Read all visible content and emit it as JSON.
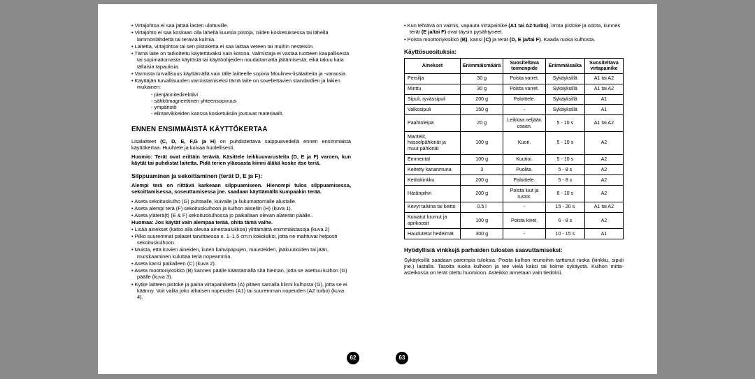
{
  "left": {
    "top_bullets": [
      "Virtajohtoa ei saa jättää lasten ulottuville.",
      "Virtajohto ei saa koskaan olla lähellä kuumia pintoja, niiden kosketuksessa tai lähellä lämmönlähdettä tai teräviä kulmia.",
      "Laitetta, virtajohtoa tai sen pistoketta ei saa laittaa veteen tai muihin nesteisiin.",
      "Tämä laite on tarkoitettu käytettäväksi vain kotona. Valmistaja ei vastaa tuotteen kaupallisesta tai sopimattomasta käytöstä tai käyttöohjeiden noudattamatta jättämisestä, eikä takuu kata tällaisia tapauksia.",
      "Varmista turvallisuus käyttämällä vain tälle laitteelle sopivia Moulinex-lisälaitteita ja -varaosia.",
      "Käyttäjän turvallisuuden varmistamiseksi tämä laite on sovellettavien standardien ja lakien mukainen:"
    ],
    "sub_bullets": [
      "pienjännitedirektiivi",
      "sähkömagneettinen yhteensopivuus",
      "ympäristö",
      "elintarvikkeiden kanssa kosketuksiin joutuvat materiaalit."
    ],
    "h2": "ENNEN ENSIMMÄISTÄ KÄYTTÖKERTAA",
    "p1a": "Lisälaitteet ",
    "p1b": "(C, D, E, F,G ja H)",
    "p1c": " on puhdistettava saippuavedellä ennen ensimmäistä käyttökertaa. Huuhtele ja kuivaa huolellisesti.",
    "warn": "Huomio: Terät ovat erittäin teräviä. Käsittele leikkuuvarusteita (D, E ja F) varoen, kun käytät tai puhdistat laitetta. Pidä terien yläosasta kiinni äläkä koske itse teriä.",
    "h3a": "Silppuaminen ja sekoittaminen (terät D, E ja F):",
    "p2": "Alempi terä on riittävä karkeaan silppuamiseen. Hienompi tulos silppuamisessa, sekoittamisessa, soseuttamisessa jne. saadaan käyttämällä kumpaakin terää.",
    "mid_bullets": [
      "Aseta sekoituskulho (G) puhtaalle, kuivalle ja liukumattomalle alustalle.",
      "Aseta alempi terä (F) sekoituskulhoon ja kulhon akseliin (H) (kuva 1).",
      "Aseta yläterä(t) (E & F) sekoituskulhossa jo paikallaan olevan alaterän päälle.."
    ],
    "note": "Huomaa: Jos käytät vain alempaa terää, ohita tämä vaihe.",
    "bot_bullets": [
      "Lisää ainekset (katso alla olevaa ainestaulukkoa) ylittämättä enimmäistasoja (kuva 2)",
      "Pilko suuremmat palaset tarvittaessa n. 1–1,5 cm:n kokoisiksi, jotta ne mahtuvat helposti sekoituskulhoon.",
      "Muista, että kovien aineiden, kuten kahvipapujen, mausteiden, jääkuutioiden tai jään, murskaaminen kuluttaa teriä nopeammin.",
      "Aseta kansi paikalleen (C) (kuva 2).",
      "Aseta moottoriyksikkö (B) kannen päälle kääntämällä sitä hieman, jotta se asettuu kulhon (G) päälle (kuva 3).",
      "Kytke laitteen pistoke ja paina virtapainiketta (A) pitäen samalla kiinni kulhosta (G), jotta se ei käänny. Voit valita joko alhaisen nopeuden (A1) tai suuremman nopeuden (A2 turbo) (kuva 4)."
    ],
    "num": "62"
  },
  "right": {
    "top_bullets_html": [
      "Kun tehtävä on valmis, vapauta virtapainike <b>(A1 tai A2 turbo)</b>, irrota pistoke ja odota, kunnes terät <b>(E ja/tai F)</b> ovat täysin pysähtyneet.",
      "Poista moottoriyksikkö <b>(B)</b>, kansi <b>(C)</b> ja terät <b>(D, E ja/tai F)</b>. Kaada ruoka kulhosta."
    ],
    "h3b": "Käyttösuosituksia:",
    "thead": [
      "Ainekset",
      "Enimmäismäärä",
      "Suositeltava toimenpide",
      "Enimmäisaika",
      "Suositeltava virtapainike"
    ],
    "rows": [
      [
        "Persilja",
        "30 g",
        "Poista varret.",
        "Sykäyksillä",
        "A1 tai A2"
      ],
      [
        "Minttu",
        "30 g",
        "Poista varret.",
        "Sykäyksillä",
        "A1 tai A2"
      ],
      [
        "Sipuli, ryvässipuli",
        "200 g",
        "Paloittele.",
        "Sykäyksillä",
        "A1"
      ],
      [
        "Valkosipuli",
        "150 g",
        "-",
        "Sykäyksillä",
        "A1"
      ],
      [
        "Paahtoleipä",
        "20 g",
        "Leikkaa neljään osaan.",
        "5 - 10 s",
        "A1 tai A2"
      ],
      [
        "Mantelit, hasselpähkinät ja muut pähkinät",
        "100 g",
        "Kuori.",
        "5 - 10 s",
        "A2"
      ],
      [
        "Emmental",
        "100 g",
        "Kuutioi.",
        "5 - 10 s",
        "A2"
      ],
      [
        "Keitetty kananmuna",
        "3",
        "Puolita.",
        "5 - 8 s",
        "A2"
      ],
      [
        "Keittokinkku",
        "200 g",
        "Paloittele.",
        "5 - 8 s",
        "A2"
      ],
      [
        "Häränpihvi",
        "200 g",
        "Poista luut ja rustot.",
        "8 - 10 s",
        "A2"
      ],
      [
        "Kevyt taikina tai keitto",
        "0.5 l",
        "-",
        "15 - 20 s",
        "A1 tai A2"
      ],
      [
        "Kuivatut luumut ja aprikoosit",
        "100 g",
        "Poista kivet.",
        "6 - 8 s",
        "A2"
      ],
      [
        "Haudutetut hedelmät",
        "300 g",
        "-",
        "10 - 15 s",
        "A1"
      ]
    ],
    "h3c": "Hyödyllisiä vinkkejä parhaiden tulosten saavuttamiseksi:",
    "p3": "Sykäyksillä saadaan parempia tuloksia. Poista kulhon reunoihin tarttunut ruoka (kinkku, sipuli jne.) lastalla. Tasoita ruoka kulhoon ja tee vielä kaksi tai kolme sykäystä. Kulhon mitta-asteikossa on terät otettu huomioon. Asteikko annetaan vain tiedoksi.",
    "num": "63"
  }
}
